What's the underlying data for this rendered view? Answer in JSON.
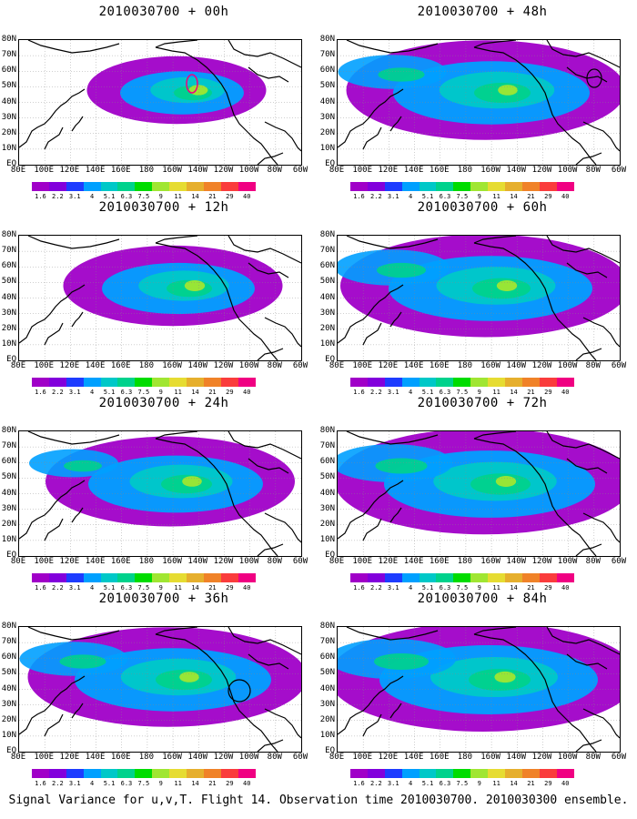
{
  "caption": "Signal Variance for u,v,T. Flight 14. Observation time 2010030700. 2010030300 ensemble.",
  "panels": [
    {
      "title": "2010030700 + 00h",
      "intensity": 0.55,
      "spread": 0.35,
      "circle": "red-ellipse"
    },
    {
      "title": "2010030700 + 12h",
      "intensity": 0.65,
      "spread": 0.55,
      "circle": ""
    },
    {
      "title": "2010030700 + 24h",
      "intensity": 0.6,
      "spread": 0.7,
      "circle": ""
    },
    {
      "title": "2010030700 + 36h",
      "intensity": 0.6,
      "spread": 0.85,
      "circle": "black-circle"
    },
    {
      "title": "2010030700 + 48h",
      "intensity": 0.6,
      "spread": 0.85,
      "circle": "black-ellipse"
    },
    {
      "title": "2010030700 + 60h",
      "intensity": 0.65,
      "spread": 0.9,
      "circle": ""
    },
    {
      "title": "2010030700 + 72h",
      "intensity": 0.65,
      "spread": 0.95,
      "circle": ""
    },
    {
      "title": "2010030700 + 84h",
      "intensity": 0.7,
      "spread": 1.0,
      "circle": ""
    }
  ],
  "lat_labels": [
    "80N",
    "70N",
    "60N",
    "50N",
    "40N",
    "30N",
    "20N",
    "10N",
    "EQ"
  ],
  "lon_labels": [
    "80E",
    "100E",
    "120E",
    "140E",
    "160E",
    "180",
    "160W",
    "140W",
    "120W",
    "100W",
    "80W",
    "60W"
  ],
  "colorbar": {
    "colors": [
      "#a000c8",
      "#8200dc",
      "#1e3cff",
      "#00a0ff",
      "#00c8c8",
      "#00d28c",
      "#00dc00",
      "#a0e632",
      "#e6dc32",
      "#e6af2d",
      "#f08228",
      "#fa3c3c",
      "#f00082"
    ],
    "labels": [
      "1.6",
      "2.2",
      "3.1",
      "4",
      "5.1",
      "6.3",
      "7.5",
      "9",
      "11",
      "14",
      "21",
      "29",
      "40"
    ]
  }
}
